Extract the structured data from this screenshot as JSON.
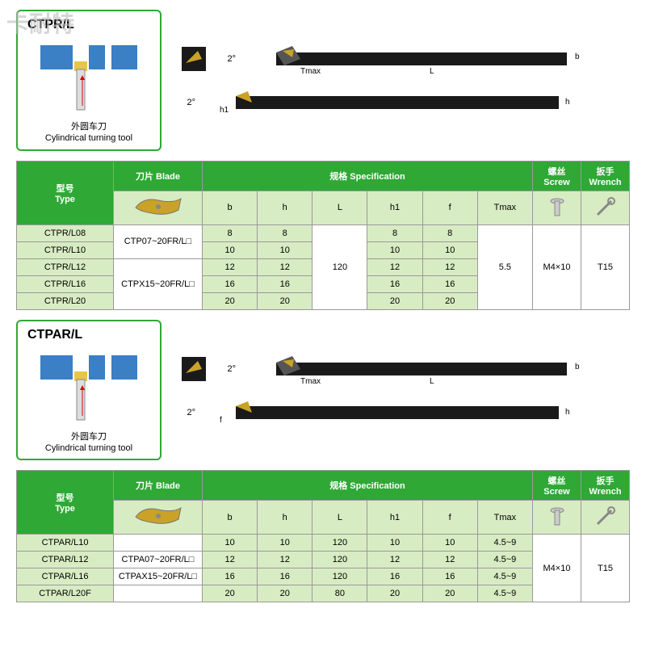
{
  "watermark": "卡耐特",
  "sections": [
    {
      "id": "ctpr",
      "panel": {
        "title": "CTPR/L",
        "caption_cn": "外圆车刀",
        "caption_en": "Cylindrical turning tool"
      },
      "angle": "2°",
      "dims_top": [
        "Tmax",
        "L",
        "b"
      ],
      "dims_bottom": [
        "h1",
        "h"
      ],
      "table": {
        "headers": {
          "type_cn": "型号",
          "type_en": "Type",
          "blade_cn": "刀片",
          "blade_en": "Blade",
          "spec_cn": "规格",
          "spec_en": "Specification",
          "screw_cn": "螺丝",
          "screw_en": "Screw",
          "wrench_cn": "扳手",
          "wrench_en": "Wrench"
        },
        "spec_cols": [
          "b",
          "h",
          "L",
          "h1",
          "f",
          "Tmax"
        ],
        "rows": [
          {
            "type": "CTPR/L08",
            "b": "8",
            "h": "8",
            "h1": "8",
            "f": "8"
          },
          {
            "type": "CTPR/L10",
            "b": "10",
            "h": "10",
            "h1": "10",
            "f": "10"
          },
          {
            "type": "CTPR/L12",
            "b": "12",
            "h": "12",
            "h1": "12",
            "f": "12"
          },
          {
            "type": "CTPR/L16",
            "b": "16",
            "h": "16",
            "h1": "16",
            "f": "16"
          },
          {
            "type": "CTPR/L20",
            "b": "20",
            "h": "20",
            "h1": "20",
            "f": "20"
          }
        ],
        "blade_groups": [
          {
            "label": "CTP07~20FR/L□",
            "span": 2
          },
          {
            "label": "CTPX15~20FR/L□",
            "span": 3
          }
        ],
        "L_merged": "120",
        "Tmax_merged": "5.5",
        "screw_merged": "M4×10",
        "wrench_merged": "T15"
      }
    },
    {
      "id": "ctpar",
      "panel": {
        "title": "CTPAR/L",
        "caption_cn": "外圆车刀",
        "caption_en": "Cylindrical turning tool"
      },
      "angle": "2°",
      "dims_top": [
        "Tmax",
        "L",
        "b"
      ],
      "dims_bottom": [
        "f",
        "h"
      ],
      "table": {
        "headers": {
          "type_cn": "型号",
          "type_en": "Type",
          "blade_cn": "刀片",
          "blade_en": "Blade",
          "spec_cn": "规格",
          "spec_en": "Specification",
          "screw_cn": "螺丝",
          "screw_en": "Screw",
          "wrench_cn": "扳手",
          "wrench_en": "Wrench"
        },
        "spec_cols": [
          "b",
          "h",
          "L",
          "h1",
          "f",
          "Tmax"
        ],
        "rows": [
          {
            "type": "CTPAR/L10",
            "b": "10",
            "h": "10",
            "L": "120",
            "h1": "10",
            "f": "10",
            "Tmax": "4.5~9"
          },
          {
            "type": "CTPAR/L12",
            "b": "12",
            "h": "12",
            "L": "120",
            "h1": "12",
            "f": "12",
            "Tmax": "4.5~9"
          },
          {
            "type": "CTPAR/L16",
            "b": "16",
            "h": "16",
            "L": "120",
            "h1": "16",
            "f": "16",
            "Tmax": "4.5~9"
          },
          {
            "type": "CTPAR/L20F",
            "b": "20",
            "h": "20",
            "L": "80",
            "h1": "20",
            "f": "20",
            "Tmax": "4.5~9"
          }
        ],
        "blade_groups": [
          {
            "label": "",
            "span": 1
          },
          {
            "label": "CTPA07~20FR/L□",
            "span": 1
          },
          {
            "label": "CTPAX15~20FR/L□",
            "span": 1
          },
          {
            "label": "",
            "span": 1
          }
        ],
        "screw_merged": "M4×10",
        "wrench_merged": "T15"
      }
    }
  ],
  "colors": {
    "header_green": "#2fa836",
    "light_green": "#d8ecc3",
    "border": "#999999",
    "tool_black": "#1a1a1a",
    "tool_insert": "#c9a227",
    "panel_blue": "#3b7fc4",
    "panel_yellow": "#e8c547"
  }
}
